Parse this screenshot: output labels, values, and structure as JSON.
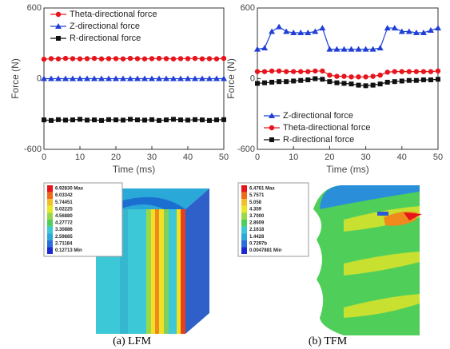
{
  "chart_data": [
    {
      "type": "line",
      "xlabel": "Time (ms)",
      "ylabel": "Force (N)",
      "x": [
        0,
        2,
        4,
        6,
        8,
        10,
        12,
        14,
        16,
        18,
        20,
        22,
        24,
        26,
        28,
        30,
        32,
        34,
        36,
        38,
        40,
        42,
        44,
        46,
        48,
        50
      ],
      "xlim": [
        0,
        50
      ],
      "xticks": [
        0,
        10,
        20,
        30,
        40,
        50
      ],
      "ylim": [
        -600,
        600
      ],
      "yticks": [
        -600,
        0,
        600
      ],
      "legend": "upper left",
      "series": [
        {
          "name": "Theta-directional force",
          "color": "#e8141c",
          "marker": "circle",
          "values": [
            165,
            170,
            168,
            172,
            170,
            168,
            170,
            172,
            168,
            170,
            170,
            168,
            172,
            170,
            168,
            170,
            172,
            170,
            168,
            170,
            170,
            172,
            168,
            170,
            168,
            172
          ]
        },
        {
          "name": "Z-directional force",
          "color": "#1f3fd6",
          "marker": "triangle",
          "values": [
            0,
            0,
            0,
            0,
            0,
            0,
            0,
            0,
            0,
            0,
            0,
            0,
            0,
            0,
            0,
            0,
            0,
            0,
            0,
            0,
            0,
            0,
            0,
            0,
            0,
            0
          ]
        },
        {
          "name": "R-directional force",
          "color": "#111111",
          "marker": "square",
          "values": [
            -350,
            -355,
            -348,
            -352,
            -350,
            -345,
            -352,
            -350,
            -355,
            -348,
            -350,
            -352,
            -345,
            -350,
            -352,
            -348,
            -355,
            -350,
            -345,
            -350,
            -352,
            -348,
            -350,
            -355,
            -350,
            -348
          ]
        }
      ]
    },
    {
      "type": "line",
      "xlabel": "Time (ms)",
      "ylabel": "Force (N)",
      "x": [
        0,
        2,
        4,
        6,
        8,
        10,
        12,
        14,
        16,
        18,
        20,
        22,
        24,
        26,
        28,
        30,
        32,
        34,
        36,
        38,
        40,
        42,
        44,
        46,
        48,
        50
      ],
      "xlim": [
        0,
        50
      ],
      "xticks": [
        0,
        10,
        20,
        30,
        40,
        50
      ],
      "ylim": [
        -600,
        600
      ],
      "yticks": [
        -600,
        0,
        600
      ],
      "legend": "lower left",
      "series": [
        {
          "name": "Z-directional force",
          "color": "#1f3fd6",
          "marker": "triangle",
          "values": [
            250,
            260,
            400,
            440,
            400,
            390,
            390,
            390,
            400,
            430,
            250,
            250,
            250,
            250,
            250,
            250,
            250,
            260,
            430,
            430,
            400,
            400,
            390,
            390,
            410,
            430
          ]
        },
        {
          "name": "Theta-directional force",
          "color": "#e8141c",
          "marker": "circle",
          "values": [
            60,
            60,
            65,
            65,
            60,
            60,
            60,
            60,
            65,
            65,
            30,
            20,
            20,
            15,
            15,
            15,
            20,
            30,
            55,
            60,
            60,
            60,
            60,
            60,
            60,
            65
          ]
        },
        {
          "name": "R-directional force",
          "color": "#111111",
          "marker": "square",
          "values": [
            -40,
            -35,
            -30,
            -25,
            -25,
            -20,
            -15,
            -10,
            0,
            -5,
            -25,
            -35,
            -40,
            -45,
            -55,
            -60,
            -55,
            -45,
            -30,
            -25,
            -20,
            -15,
            -15,
            -10,
            -10,
            -5
          ]
        }
      ]
    }
  ],
  "contour_legends": [
    {
      "labels": [
        "6.92830 Max",
        "6.03342",
        "5.74451",
        "5.02225",
        "4.56880",
        "4.27772",
        "3.30886",
        "2.59885",
        "2.71184",
        "0.12713 Min"
      ]
    },
    {
      "labels": [
        "6.4761 Max",
        "5.7571",
        "5.058",
        "4.359",
        "3.7000",
        "2.8609",
        "2.1618",
        "1.4428",
        "0.7297b",
        "0.0047881 Min"
      ]
    }
  ],
  "captions": [
    "(a) LFM",
    "(b) TFM"
  ]
}
